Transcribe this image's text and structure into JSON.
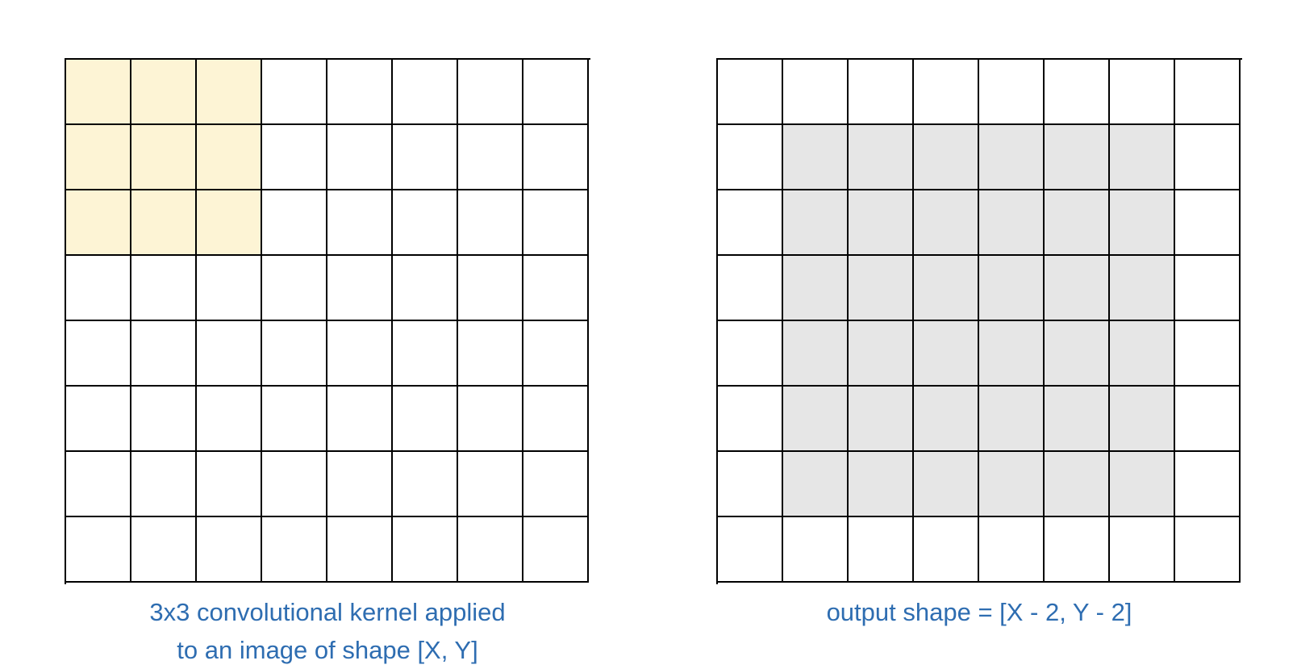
{
  "grid_rows": 8,
  "grid_cols": 8,
  "colors": {
    "kernel_fill": "#fdf4d5",
    "output_fill": "#e6e6e6",
    "caption_text": "#2e6db1",
    "grid_line": "#000000"
  },
  "left_panel": {
    "kernel_size": 3,
    "kernel_origin": [
      0,
      0
    ],
    "caption_lines": [
      "3x3 convolutional kernel applied",
      "to an image of shape [X, Y]"
    ]
  },
  "right_panel": {
    "output_region_start": 1,
    "output_region_end": 6,
    "caption": "output shape = [X - 2, Y - 2]"
  }
}
